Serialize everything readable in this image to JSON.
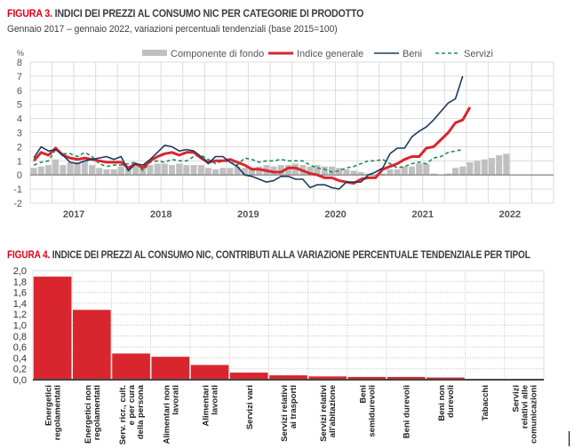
{
  "figure3": {
    "title_num": "FIGURA 3.",
    "title_text": " INDICI DEI PREZZI AL CONSUMO NIC PER CATEGORIE DI PRODOTTO",
    "subtitle": "Gennaio 2017 – gennaio 2022, variazioni percentuali tendenziali (base 2015=100)"
  },
  "figure4": {
    "title_num": "FIGURA 4.",
    "title_text": " INDICE DEI PREZZI AL CONSUMO NIC, CONTRIBUTI ALLA VARIAZIONE PERCENTUALE TENDENZIALE PER TIPOL"
  },
  "chart_data": [
    {
      "type": "line",
      "title": "Indici dei prezzi al consumo NIC per categorie di prodotto",
      "ylabel": "%",
      "ylim": [
        -2,
        8
      ],
      "yticks": [
        "-2",
        "-1",
        "0",
        "1",
        "2",
        "3",
        "4",
        "5",
        "6",
        "7",
        "8"
      ],
      "x_start": "2017-01",
      "x_end": "2022-12",
      "xtick_labels": [
        "2017",
        "2018",
        "2019",
        "2020",
        "2021",
        "2022"
      ],
      "grid": true,
      "legend": "top-center",
      "legend_entries": [
        "Componente di fondo",
        "Indice generale",
        "Beni",
        "Servizi"
      ],
      "series": [
        {
          "name": "Componente di fondo",
          "kind": "bar",
          "color": "#c0c0c0",
          "values": [
            0.5,
            0.6,
            0.7,
            1.1,
            0.7,
            0.9,
            0.9,
            1.0,
            0.7,
            0.5,
            0.4,
            0.4,
            0.6,
            0.5,
            0.7,
            0.5,
            0.7,
            0.8,
            0.8,
            0.7,
            0.8,
            0.7,
            0.7,
            0.7,
            0.5,
            0.4,
            0.5,
            0.5,
            0.6,
            0.5,
            0.5,
            0.6,
            0.7,
            0.6,
            0.7,
            0.7,
            0.8,
            0.7,
            0.6,
            0.7,
            0.6,
            0.6,
            0.5,
            0.4,
            0.3,
            0.2,
            0.1,
            0.0,
            0.1,
            0.4,
            0.4,
            0.6,
            0.6,
            0.8,
            0.8,
            0.1,
            0.0,
            0.1,
            0.5,
            0.6,
            0.9,
            1.0,
            1.1,
            1.2,
            1.4,
            1.5
          ]
        },
        {
          "name": "Indice generale",
          "kind": "line",
          "color": "#d9262e",
          "values": [
            1.0,
            1.6,
            1.4,
            1.9,
            1.4,
            1.2,
            1.1,
            1.2,
            1.1,
            1.0,
            0.9,
            0.9,
            0.9,
            0.5,
            0.8,
            0.5,
            1.0,
            1.3,
            1.5,
            1.6,
            1.4,
            1.6,
            1.6,
            1.2,
            0.9,
            1.0,
            1.0,
            1.1,
            0.9,
            0.7,
            0.4,
            0.4,
            0.3,
            0.2,
            0.2,
            0.5,
            0.5,
            0.3,
            0.1,
            0.0,
            -0.2,
            -0.2,
            -0.4,
            -0.5,
            -0.6,
            -0.3,
            -0.2,
            -0.2,
            0.4,
            0.6,
            0.8,
            1.1,
            1.3,
            1.3,
            1.9,
            2.0,
            2.5,
            3.0,
            3.7,
            3.9,
            4.8
          ]
        },
        {
          "name": "Beni",
          "kind": "line",
          "color": "#1b3a5c",
          "values": [
            1.2,
            2.0,
            1.7,
            1.8,
            1.4,
            0.9,
            0.8,
            1.0,
            1.1,
            1.2,
            1.3,
            1.1,
            1.3,
            0.3,
            0.8,
            0.7,
            1.1,
            1.6,
            2.1,
            2.0,
            1.7,
            1.8,
            1.7,
            1.3,
            0.8,
            1.3,
            1.3,
            0.9,
            0.6,
            0.0,
            -0.1,
            -0.3,
            -0.5,
            -0.4,
            -0.1,
            -0.1,
            -0.3,
            -0.3,
            -0.9,
            -0.7,
            -0.7,
            -0.9,
            -1.0,
            -0.5,
            -0.5,
            -0.5,
            0.0,
            0.2,
            0.5,
            1.5,
            1.9,
            1.9,
            2.7,
            3.1,
            3.4,
            3.9,
            4.5,
            5.1,
            5.4,
            7.0
          ]
        },
        {
          "name": "Servizi",
          "kind": "line",
          "color": "#1e8a5a",
          "dashed": true,
          "values": [
            0.7,
            0.9,
            1.0,
            1.8,
            1.5,
            1.5,
            1.3,
            1.6,
            1.3,
            0.8,
            0.6,
            0.7,
            0.7,
            0.8,
            0.9,
            0.3,
            0.9,
            1.0,
            0.9,
            1.1,
            1.0,
            1.0,
            1.3,
            1.4,
            1.1,
            0.8,
            1.0,
            0.9,
            0.7,
            1.2,
            1.1,
            0.9,
            1.0,
            1.0,
            1.1,
            1.0,
            1.0,
            1.0,
            0.7,
            0.5,
            0.4,
            0.2,
            0.3,
            0.5,
            0.6,
            0.8,
            1.0,
            1.0,
            1.1,
            0.8,
            0.5,
            0.6,
            0.8,
            0.9,
            0.8,
            1.2,
            1.3,
            1.6,
            1.7,
            1.8
          ]
        }
      ]
    },
    {
      "type": "bar",
      "title": "Indice dei prezzi al consumo NIC, contributi alla variazione percentuale tendenziale per tipologia di prodotto",
      "ylim": [
        0,
        2.0
      ],
      "yticks": [
        "0,0",
        "0,2",
        "0,4",
        "0,6",
        "0,8",
        "1,0",
        "1,2",
        "1,4",
        "1,6",
        "1,8",
        "2,0"
      ],
      "grid": true,
      "categories": [
        [
          "Energetici",
          "regolamentati"
        ],
        [
          "Energetici non",
          "regolamentati"
        ],
        [
          "Serv. ricr., cult.",
          "e per cura",
          "della persona"
        ],
        [
          "Alimentari non",
          "lavorati"
        ],
        [
          "Alimentari",
          "lavorati"
        ],
        [
          "Servizi vari"
        ],
        [
          "Servizi relativi",
          "ai trasporti"
        ],
        [
          "Servizi relativi",
          "all'abitazione"
        ],
        [
          "Beni",
          "semidurevoli"
        ],
        [
          "Beni durevoli"
        ],
        [
          "Beni non",
          "durevoli"
        ],
        [
          "Tabacchi"
        ],
        [
          "Servizi",
          "relativi alle",
          "comunicazioni"
        ]
      ],
      "values": [
        1.89,
        1.28,
        0.48,
        0.42,
        0.27,
        0.13,
        0.08,
        0.06,
        0.05,
        0.05,
        0.04,
        0.0,
        0.0
      ],
      "color": "#d9262e"
    }
  ]
}
